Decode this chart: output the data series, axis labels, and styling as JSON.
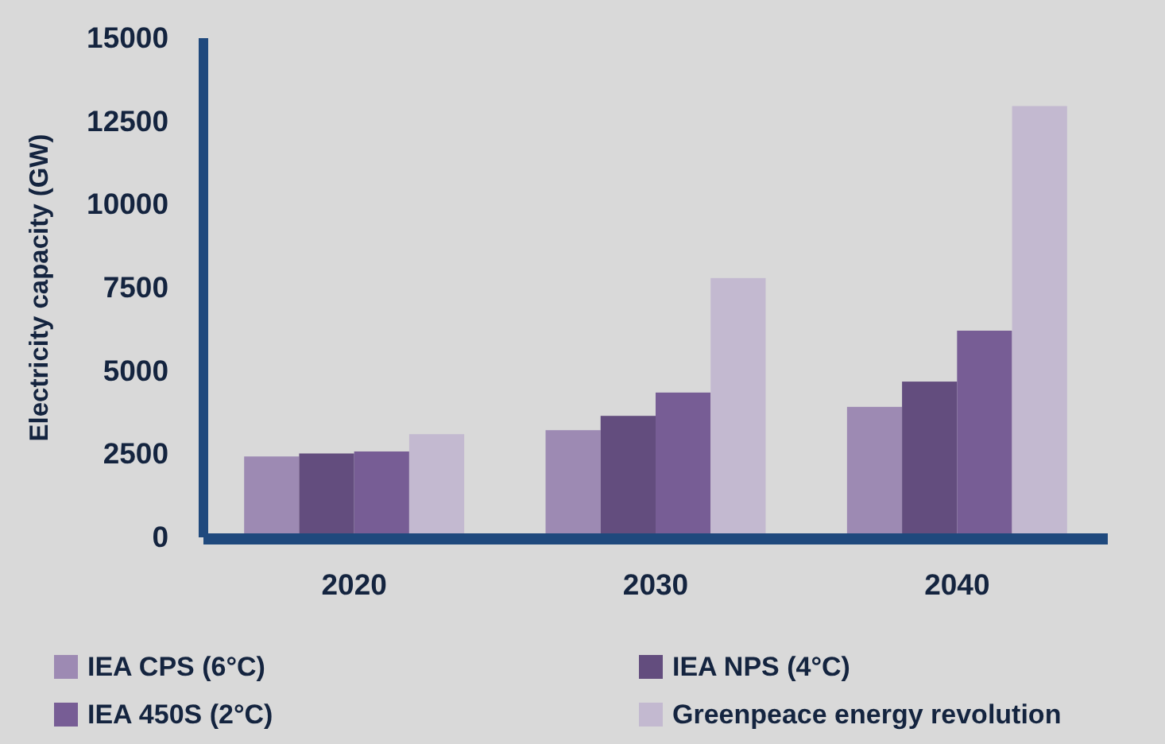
{
  "chart_data": {
    "type": "bar",
    "ylabel": "Electricity capacity (GW)",
    "categories": [
      "2020",
      "2030",
      "2040"
    ],
    "series": [
      {
        "name": "IEA CPS (6°C)",
        "color": "#9d8ab3",
        "values": [
          2430,
          3220,
          3920
        ]
      },
      {
        "name": "IEA NPS (4°C)",
        "color": "#634d7e",
        "values": [
          2520,
          3650,
          4680
        ]
      },
      {
        "name": "IEA 450S (2°C)",
        "color": "#775d95",
        "values": [
          2580,
          4350,
          6210
        ]
      },
      {
        "name": "Greenpeace energy revolution",
        "color": "#c3b9d0",
        "values": [
          3100,
          7790,
          12960
        ]
      }
    ],
    "ylim": [
      0,
      15000
    ],
    "yticks": [
      0,
      2500,
      5000,
      7500,
      10000,
      12500,
      15000
    ],
    "grid": false,
    "legend": "bottom"
  }
}
